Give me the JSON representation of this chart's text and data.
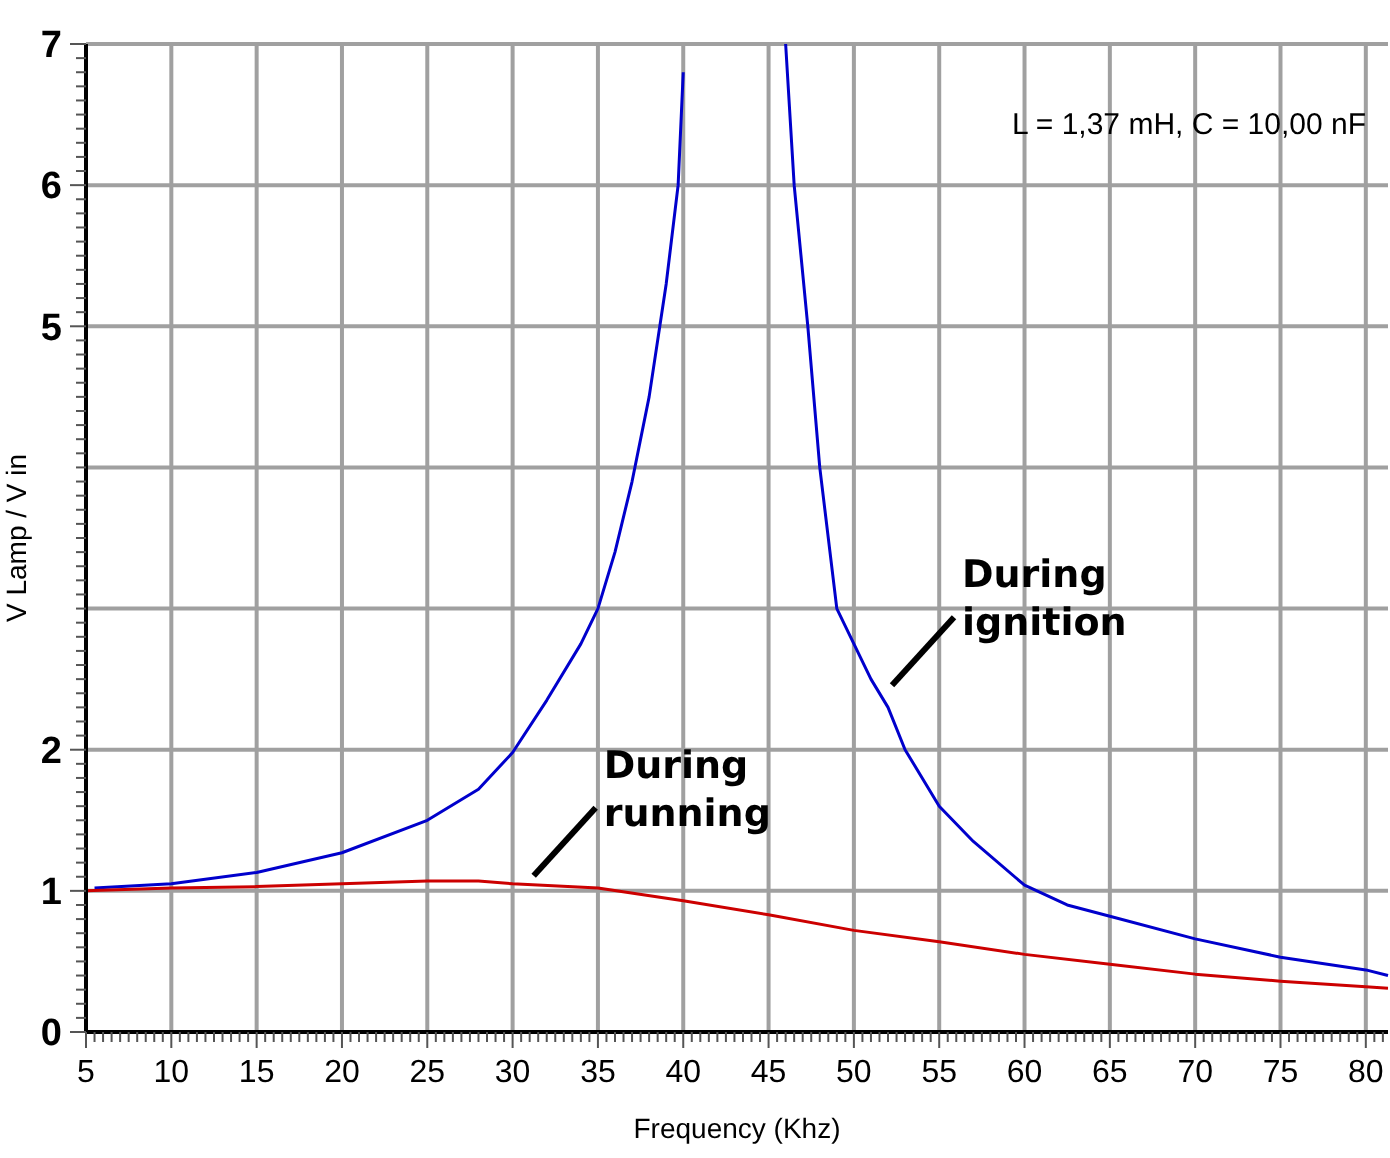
{
  "chart_data": {
    "type": "line",
    "xlabel": "Frequency (Khz)",
    "ylabel": "V Lamp / V in",
    "xlim": [
      5,
      81.3
    ],
    "ylim": [
      0,
      7
    ],
    "xticks": [
      5,
      {
        "value": 5.5,
        "label": null
      },
      {
        "value": 6,
        "label": null
      },
      {
        "value": 6.5,
        "label": null
      },
      {
        "value": 7,
        "label": null
      },
      {
        "value": 7.5,
        "label": null
      },
      {
        "value": 8,
        "label": null
      },
      {
        "value": 8.5,
        "label": null
      },
      {
        "value": 9,
        "label": null
      },
      {
        "value": 9.5,
        "label": null
      },
      10,
      {
        "value": 10.5,
        "label": null
      },
      {
        "value": 11,
        "label": null
      },
      {
        "value": 11.5,
        "label": null
      },
      {
        "value": 12,
        "label": null
      },
      {
        "value": 12.5,
        "label": null
      },
      {
        "value": 13,
        "label": null
      },
      {
        "value": 13.5,
        "label": null
      },
      {
        "value": 14,
        "label": null
      },
      {
        "value": 14.5,
        "label": null
      },
      15,
      {
        "value": 15.5,
        "label": null
      },
      {
        "value": 16,
        "label": null
      },
      {
        "value": 16.5,
        "label": null
      },
      {
        "value": 17,
        "label": null
      },
      {
        "value": 17.5,
        "label": null
      },
      {
        "value": 18,
        "label": null
      },
      {
        "value": 18.5,
        "label": null
      },
      {
        "value": 19,
        "label": null
      },
      {
        "value": 19.5,
        "label": null
      },
      20,
      {
        "value": 20.5,
        "label": null
      },
      {
        "value": 21,
        "label": null
      },
      {
        "value": 21.5,
        "label": null
      },
      {
        "value": 22,
        "label": null
      },
      {
        "value": 22.5,
        "label": null
      },
      {
        "value": 23,
        "label": null
      },
      {
        "value": 23.5,
        "label": null
      },
      {
        "value": 24,
        "label": null
      },
      {
        "value": 24.5,
        "label": null
      },
      25,
      {
        "value": 25.5,
        "label": null
      },
      {
        "value": 26,
        "label": null
      },
      {
        "value": 26.5,
        "label": null
      },
      {
        "value": 27,
        "label": null
      },
      {
        "value": 27.5,
        "label": null
      },
      {
        "value": 28,
        "label": null
      },
      {
        "value": 28.5,
        "label": null
      },
      {
        "value": 29,
        "label": null
      },
      {
        "value": 29.5,
        "label": null
      },
      30,
      {
        "value": 30.5,
        "label": null
      },
      {
        "value": 31,
        "label": null
      },
      {
        "value": 31.5,
        "label": null
      },
      {
        "value": 32,
        "label": null
      },
      {
        "value": 32.5,
        "label": null
      },
      {
        "value": 33,
        "label": null
      },
      {
        "value": 33.5,
        "label": null
      },
      {
        "value": 34,
        "label": null
      },
      {
        "value": 34.5,
        "label": null
      },
      35,
      {
        "value": 35.5,
        "label": null
      },
      {
        "value": 36,
        "label": null
      },
      {
        "value": 36.5,
        "label": null
      },
      {
        "value": 37,
        "label": null
      },
      {
        "value": 37.5,
        "label": null
      },
      {
        "value": 38,
        "label": null
      },
      {
        "value": 38.5,
        "label": null
      },
      {
        "value": 39,
        "label": null
      },
      {
        "value": 39.5,
        "label": null
      },
      40,
      {
        "value": 40.5,
        "label": null
      },
      {
        "value": 41,
        "label": null
      },
      {
        "value": 41.5,
        "label": null
      },
      {
        "value": 42,
        "label": null
      },
      {
        "value": 42.5,
        "label": null
      },
      {
        "value": 43,
        "label": null
      },
      {
        "value": 43.5,
        "label": null
      },
      {
        "value": 44,
        "label": null
      },
      {
        "value": 44.5,
        "label": null
      },
      45,
      {
        "value": 45.5,
        "label": null
      },
      {
        "value": 46,
        "label": null
      },
      {
        "value": 46.5,
        "label": null
      },
      {
        "value": 47,
        "label": null
      },
      {
        "value": 47.5,
        "label": null
      },
      {
        "value": 48,
        "label": null
      },
      {
        "value": 48.5,
        "label": null
      },
      {
        "value": 49,
        "label": null
      },
      {
        "value": 49.5,
        "label": null
      },
      50,
      {
        "value": 50.5,
        "label": null
      },
      {
        "value": 51,
        "label": null
      },
      {
        "value": 51.5,
        "label": null
      },
      {
        "value": 52,
        "label": null
      },
      {
        "value": 52.5,
        "label": null
      },
      {
        "value": 53,
        "label": null
      },
      {
        "value": 53.5,
        "label": null
      },
      {
        "value": 54,
        "label": null
      },
      {
        "value": 54.5,
        "label": null
      },
      55,
      {
        "value": 55.5,
        "label": null
      },
      {
        "value": 56,
        "label": null
      },
      {
        "value": 56.5,
        "label": null
      },
      {
        "value": 57,
        "label": null
      },
      {
        "value": 57.5,
        "label": null
      },
      {
        "value": 58,
        "label": null
      },
      {
        "value": 58.5,
        "label": null
      },
      {
        "value": 59,
        "label": null
      },
      {
        "value": 59.5,
        "label": null
      },
      60,
      {
        "value": 60.5,
        "label": null
      },
      {
        "value": 61,
        "label": null
      },
      {
        "value": 61.5,
        "label": null
      },
      {
        "value": 62,
        "label": null
      },
      {
        "value": 62.5,
        "label": null
      },
      {
        "value": 63,
        "label": null
      },
      {
        "value": 63.5,
        "label": null
      },
      {
        "value": 64,
        "label": null
      },
      {
        "value": 64.5,
        "label": null
      },
      65,
      {
        "value": 65.5,
        "label": null
      },
      {
        "value": 66,
        "label": null
      },
      {
        "value": 66.5,
        "label": null
      },
      {
        "value": 67,
        "label": null
      },
      {
        "value": 67.5,
        "label": null
      },
      {
        "value": 68,
        "label": null
      },
      {
        "value": 68.5,
        "label": null
      },
      {
        "value": 69,
        "label": null
      },
      {
        "value": 69.5,
        "label": null
      },
      70,
      {
        "value": 70.5,
        "label": null
      },
      {
        "value": 71,
        "label": null
      },
      {
        "value": 71.5,
        "label": null
      },
      {
        "value": 72,
        "label": null
      },
      {
        "value": 72.5,
        "label": null
      },
      {
        "value": 73,
        "label": null
      },
      {
        "value": 73.5,
        "label": null
      },
      {
        "value": 74,
        "label": null
      },
      {
        "value": 74.5,
        "label": null
      },
      75,
      {
        "value": 75.5,
        "label": null
      },
      {
        "value": 76,
        "label": null
      },
      {
        "value": 76.5,
        "label": null
      },
      {
        "value": 77,
        "label": null
      },
      {
        "value": 77.5,
        "label": null
      },
      {
        "value": 78,
        "label": null
      },
      {
        "value": 78.5,
        "label": null
      },
      {
        "value": 79,
        "label": null
      },
      {
        "value": 79.5,
        "label": null
      },
      80,
      {
        "value": 80.5,
        "label": null
      },
      {
        "value": 81,
        "label": null
      }
    ],
    "yticks": [
      0,
      {
        "value": 0.1,
        "label": null
      },
      {
        "value": 0.2,
        "label": null
      },
      {
        "value": 0.3,
        "label": null
      },
      {
        "value": 0.4,
        "label": null
      },
      {
        "value": 0.5,
        "label": null
      },
      {
        "value": 0.6,
        "label": null
      },
      {
        "value": 0.7,
        "label": null
      },
      {
        "value": 0.8,
        "label": null
      },
      {
        "value": 0.9,
        "label": null
      },
      1,
      {
        "value": 1.1,
        "label": null
      },
      {
        "value": 1.2,
        "label": null
      },
      {
        "value": 1.3,
        "label": null
      },
      {
        "value": 1.4,
        "label": null
      },
      {
        "value": 1.5,
        "label": null
      },
      {
        "value": 1.6,
        "label": null
      },
      {
        "value": 1.7,
        "label": null
      },
      {
        "value": 1.8,
        "label": null
      },
      {
        "value": 1.9,
        "label": null
      },
      2,
      {
        "value": 2.1,
        "label": null
      },
      {
        "value": 2.2,
        "label": null
      },
      {
        "value": 2.3,
        "label": null
      },
      {
        "value": 2.4,
        "label": null
      },
      {
        "value": 2.5,
        "label": null
      },
      {
        "value": 2.6,
        "label": null
      },
      {
        "value": 2.7,
        "label": null
      },
      {
        "value": 2.8,
        "label": null
      },
      {
        "value": 2.9,
        "label": null
      },
      {
        "value": 3,
        "label": null
      },
      {
        "value": 3.1,
        "label": null
      },
      {
        "value": 3.2,
        "label": null
      },
      {
        "value": 3.3,
        "label": null
      },
      {
        "value": 3.4,
        "label": null
      },
      {
        "value": 3.5,
        "label": null
      },
      {
        "value": 3.6,
        "label": null
      },
      {
        "value": 3.7,
        "label": null
      },
      {
        "value": 3.8,
        "label": null
      },
      {
        "value": 3.9,
        "label": null
      },
      {
        "value": 4,
        "label": null
      },
      {
        "value": 4.1,
        "label": null
      },
      {
        "value": 4.2,
        "label": null
      },
      {
        "value": 4.3,
        "label": null
      },
      {
        "value": 4.4,
        "label": null
      },
      {
        "value": 4.5,
        "label": null
      },
      {
        "value": 4.6,
        "label": null
      },
      {
        "value": 4.7,
        "label": null
      },
      {
        "value": 4.8,
        "label": null
      },
      {
        "value": 4.9,
        "label": null
      },
      5,
      {
        "value": 5.1,
        "label": null
      },
      {
        "value": 5.2,
        "label": null
      },
      {
        "value": 5.3,
        "label": null
      },
      {
        "value": 5.4,
        "label": null
      },
      {
        "value": 5.5,
        "label": null
      },
      {
        "value": 5.6,
        "label": null
      },
      {
        "value": 5.7,
        "label": null
      },
      {
        "value": 5.8,
        "label": null
      },
      {
        "value": 5.9,
        "label": null
      },
      6,
      {
        "value": 6.1,
        "label": null
      },
      {
        "value": 6.2,
        "label": null
      },
      {
        "value": 6.3,
        "label": null
      },
      {
        "value": 6.4,
        "label": null
      },
      {
        "value": 6.5,
        "label": null
      },
      {
        "value": 6.6,
        "label": null
      },
      {
        "value": 6.7,
        "label": null
      },
      {
        "value": 6.8,
        "label": null
      },
      {
        "value": 6.9,
        "label": null
      },
      7
    ],
    "grid": true,
    "marker": "none",
    "line_style": "solid",
    "series": [
      {
        "color": "#0000cc",
        "x": [
          5.5,
          10,
          15,
          20,
          25,
          28,
          30,
          32,
          34,
          35,
          36,
          37,
          38,
          39,
          39.7,
          40,
          43,
          46,
          46.5,
          47.3,
          48,
          49,
          50,
          51,
          52,
          53,
          55,
          57,
          60,
          62.5,
          65,
          70,
          75,
          80,
          81.3
        ],
        "values": [
          1.02,
          1.05,
          1.13,
          1.27,
          1.5,
          1.72,
          1.98,
          2.35,
          2.75,
          3.0,
          3.4,
          3.9,
          4.5,
          5.3,
          6.0,
          6.8,
          null,
          7.0,
          6.0,
          5.0,
          4.0,
          3.0,
          2.75,
          2.5,
          2.3,
          2.0,
          1.6,
          1.35,
          1.04,
          0.9,
          0.82,
          0.66,
          0.53,
          0.44,
          0.4
        ]
      },
      {
        "color": "#cc0000",
        "x": [
          5,
          10,
          15,
          20,
          25,
          28,
          30,
          35,
          40,
          45,
          50,
          55,
          60,
          65,
          70,
          75,
          80,
          81.3
        ],
        "values": [
          1.0,
          1.02,
          1.03,
          1.05,
          1.07,
          1.07,
          1.05,
          1.02,
          0.93,
          0.83,
          0.72,
          0.64,
          0.55,
          0.48,
          0.41,
          0.36,
          0.32,
          0.31
        ]
      }
    ],
    "annotations": [
      "L = 1,37 mH,  C = 10,00 nF",
      {
        "text": "During ignition",
        "x": 52,
        "y": 2.4
      },
      {
        "text": "During running",
        "x": 31,
        "y": 1.05
      }
    ]
  }
}
